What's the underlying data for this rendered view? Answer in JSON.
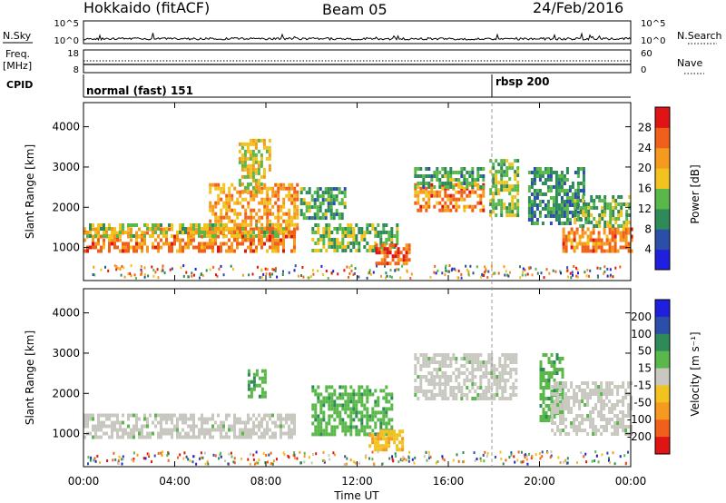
{
  "header": {
    "station": "Hokkaido (fitACF)",
    "beam": "Beam 05",
    "date": "24/Feb/2016"
  },
  "strip_labels": {
    "nsky": "N.Sky",
    "nsearch": "N.Search",
    "freq_line1": "Freq.",
    "freq_line2": "[MHz]",
    "nave": "Nave",
    "cpid": "CPID"
  },
  "strip_ticks": {
    "nsky_left": [
      "10^5",
      "10^0"
    ],
    "nsky_right": [
      "10^5",
      "10^0"
    ],
    "freq_left": [
      "18",
      "8"
    ],
    "freq_right": [
      "60",
      "0"
    ]
  },
  "cpid_segments": [
    {
      "label": "normal (fast) 151",
      "start_hour": 0
    },
    {
      "label": "rbsp 200",
      "start_hour": 18
    }
  ],
  "time_axis": {
    "label": "Time UT",
    "ticks": [
      "00:00",
      "04:00",
      "08:00",
      "12:00",
      "16:00",
      "20:00",
      "00:00"
    ]
  },
  "colors": {
    "power_scale": [
      "#1f1fe0",
      "#2b4fa8",
      "#2f8a5a",
      "#5ab84a",
      "#f2c21e",
      "#f59a1e",
      "#f0601a",
      "#e01414"
    ],
    "velocity_scale": [
      "#1f1fe0",
      "#2b4fa8",
      "#2f8a5a",
      "#5ab84a",
      "#c8c8c0",
      "#f2c21e",
      "#f59a1e",
      "#f0601a",
      "#e01414"
    ]
  },
  "chart_data": [
    {
      "type": "heatmap",
      "name": "Power",
      "xlabel": "Time UT",
      "ylabel": "Slant Range [km]",
      "xlim": [
        0,
        24
      ],
      "ylim": [
        180,
        4600
      ],
      "yticks": [
        "1000",
        "2000",
        "3000",
        "4000"
      ],
      "colorbar": {
        "label": "Power [dB]",
        "ticks": [
          "4",
          "8",
          "12",
          "16",
          "20",
          "24",
          "28"
        ],
        "range": [
          0,
          32
        ]
      },
      "regions": [
        {
          "t0": 0.0,
          "t1": 9.3,
          "r0": 900,
          "r1": 1500,
          "level": 24
        },
        {
          "t0": 0.0,
          "t1": 9.0,
          "r0": 1300,
          "r1": 1600,
          "level": 16
        },
        {
          "t0": 5.5,
          "t1": 9.4,
          "r0": 1400,
          "r1": 2600,
          "level": 22
        },
        {
          "t0": 6.8,
          "t1": 8.2,
          "r0": 2400,
          "r1": 3700,
          "level": 18
        },
        {
          "t0": 9.5,
          "t1": 11.5,
          "r0": 1700,
          "r1": 2500,
          "level": 12
        },
        {
          "t0": 10.0,
          "t1": 13.8,
          "r0": 900,
          "r1": 1600,
          "level": 14
        },
        {
          "t0": 12.8,
          "t1": 14.3,
          "r0": 600,
          "r1": 1100,
          "level": 26
        },
        {
          "t0": 14.5,
          "t1": 17.5,
          "r0": 1900,
          "r1": 2600,
          "level": 24
        },
        {
          "t0": 14.5,
          "t1": 17.5,
          "r0": 2500,
          "r1": 3000,
          "level": 12
        },
        {
          "t0": 17.8,
          "t1": 19.0,
          "r0": 1800,
          "r1": 3200,
          "level": 14
        },
        {
          "t0": 19.5,
          "t1": 22.0,
          "r0": 1600,
          "r1": 3000,
          "level": 10
        },
        {
          "t0": 21.0,
          "t1": 24.0,
          "r0": 900,
          "r1": 1500,
          "level": 24
        },
        {
          "t0": 21.5,
          "t1": 24.0,
          "r0": 1500,
          "r1": 2300,
          "level": 14
        }
      ]
    },
    {
      "type": "heatmap",
      "name": "Velocity",
      "xlabel": "Time UT",
      "ylabel": "Slant Range [km]",
      "xlim": [
        0,
        24
      ],
      "ylim": [
        180,
        4600
      ],
      "yticks": [
        "1000",
        "2000",
        "3000",
        "4000"
      ],
      "colorbar": {
        "label": "Velocity [m s⁻¹]",
        "ticks": [
          "200",
          "100",
          "50",
          "15",
          "-15",
          "-50",
          "-100",
          "-200"
        ]
      },
      "regions": [
        {
          "t0": 0.0,
          "t1": 9.3,
          "r0": 900,
          "r1": 1500,
          "class": "ground"
        },
        {
          "t0": 7.2,
          "t1": 8.0,
          "r0": 1900,
          "r1": 2600,
          "class": "pos50"
        },
        {
          "t0": 10.0,
          "t1": 13.5,
          "r0": 1000,
          "r1": 2200,
          "class": "pos50"
        },
        {
          "t0": 12.5,
          "t1": 14.0,
          "r0": 600,
          "r1": 1100,
          "class": "neg50"
        },
        {
          "t0": 14.5,
          "t1": 19.0,
          "r0": 1900,
          "r1": 3000,
          "class": "ground"
        },
        {
          "t0": 20.0,
          "t1": 21.0,
          "r0": 1300,
          "r1": 3000,
          "class": "pos50"
        },
        {
          "t0": 20.5,
          "t1": 24.0,
          "r0": 1000,
          "r1": 2300,
          "class": "ground"
        }
      ]
    }
  ]
}
